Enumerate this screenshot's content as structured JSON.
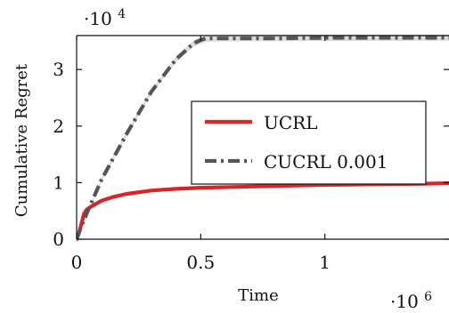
{
  "chart_data": {
    "type": "line",
    "xlabel": "Time",
    "ylabel": "Cumulative Regret",
    "x_multiplier": {
      "base": "·10",
      "exponent": "6"
    },
    "y_multiplier": {
      "base": "·10",
      "exponent": "4"
    },
    "xlim": [
      0,
      1.5
    ],
    "ylim": [
      0,
      3.6
    ],
    "xticks": [
      {
        "value": 0,
        "label": "0"
      },
      {
        "value": 0.5,
        "label": "0.5"
      },
      {
        "value": 1,
        "label": "1"
      }
    ],
    "yticks": [
      {
        "value": 0,
        "label": "0"
      },
      {
        "value": 1,
        "label": "1"
      },
      {
        "value": 2,
        "label": "2"
      },
      {
        "value": 3,
        "label": "3"
      }
    ],
    "legend_position": "center-right",
    "series": [
      {
        "name": "UCRL",
        "color": "#d62728",
        "line_style": "solid",
        "points": [
          {
            "x": 0.0,
            "y": 0.0
          },
          {
            "x": 0.01,
            "y": 0.12
          },
          {
            "x": 0.02,
            "y": 0.28
          },
          {
            "x": 0.03,
            "y": 0.45
          },
          {
            "x": 0.04,
            "y": 0.52
          },
          {
            "x": 0.06,
            "y": 0.58
          },
          {
            "x": 0.08,
            "y": 0.63
          },
          {
            "x": 0.1,
            "y": 0.68
          },
          {
            "x": 0.15,
            "y": 0.75
          },
          {
            "x": 0.2,
            "y": 0.8
          },
          {
            "x": 0.3,
            "y": 0.86
          },
          {
            "x": 0.4,
            "y": 0.89
          },
          {
            "x": 0.5,
            "y": 0.91
          },
          {
            "x": 0.6,
            "y": 0.92
          },
          {
            "x": 0.8,
            "y": 0.94
          },
          {
            "x": 1.0,
            "y": 0.96
          },
          {
            "x": 1.2,
            "y": 0.97
          },
          {
            "x": 1.4,
            "y": 0.98
          },
          {
            "x": 1.5,
            "y": 0.99
          }
        ]
      },
      {
        "name": "CUCRL 0.001",
        "color": "#555555",
        "line_style": "dash-dot",
        "band_color": "#bdbdbd",
        "points": [
          {
            "x": 0.0,
            "y": 0.0
          },
          {
            "x": 0.02,
            "y": 0.24
          },
          {
            "x": 0.05,
            "y": 0.55
          },
          {
            "x": 0.1,
            "y": 1.05
          },
          {
            "x": 0.2,
            "y": 1.85
          },
          {
            "x": 0.3,
            "y": 2.6
          },
          {
            "x": 0.4,
            "y": 3.18
          },
          {
            "x": 0.47,
            "y": 3.46
          },
          {
            "x": 0.5,
            "y": 3.52
          },
          {
            "x": 0.52,
            "y": 3.55
          },
          {
            "x": 0.6,
            "y": 3.55
          },
          {
            "x": 0.8,
            "y": 3.55
          },
          {
            "x": 1.0,
            "y": 3.56
          },
          {
            "x": 1.2,
            "y": 3.56
          },
          {
            "x": 1.5,
            "y": 3.56
          }
        ],
        "band_lower": [
          {
            "x": 0.0,
            "y": 0.0
          },
          {
            "x": 0.1,
            "y": 1.02
          },
          {
            "x": 0.2,
            "y": 1.81
          },
          {
            "x": 0.3,
            "y": 2.56
          },
          {
            "x": 0.4,
            "y": 3.13
          },
          {
            "x": 0.47,
            "y": 3.4
          },
          {
            "x": 0.52,
            "y": 3.49
          },
          {
            "x": 0.6,
            "y": 3.5
          },
          {
            "x": 1.5,
            "y": 3.51
          }
        ],
        "band_upper": [
          {
            "x": 0.0,
            "y": 0.0
          },
          {
            "x": 0.1,
            "y": 1.08
          },
          {
            "x": 0.2,
            "y": 1.89
          },
          {
            "x": 0.3,
            "y": 2.64
          },
          {
            "x": 0.4,
            "y": 3.22
          },
          {
            "x": 0.47,
            "y": 3.51
          },
          {
            "x": 0.52,
            "y": 3.61
          },
          {
            "x": 0.6,
            "y": 3.62
          },
          {
            "x": 1.5,
            "y": 3.62
          }
        ]
      }
    ]
  }
}
